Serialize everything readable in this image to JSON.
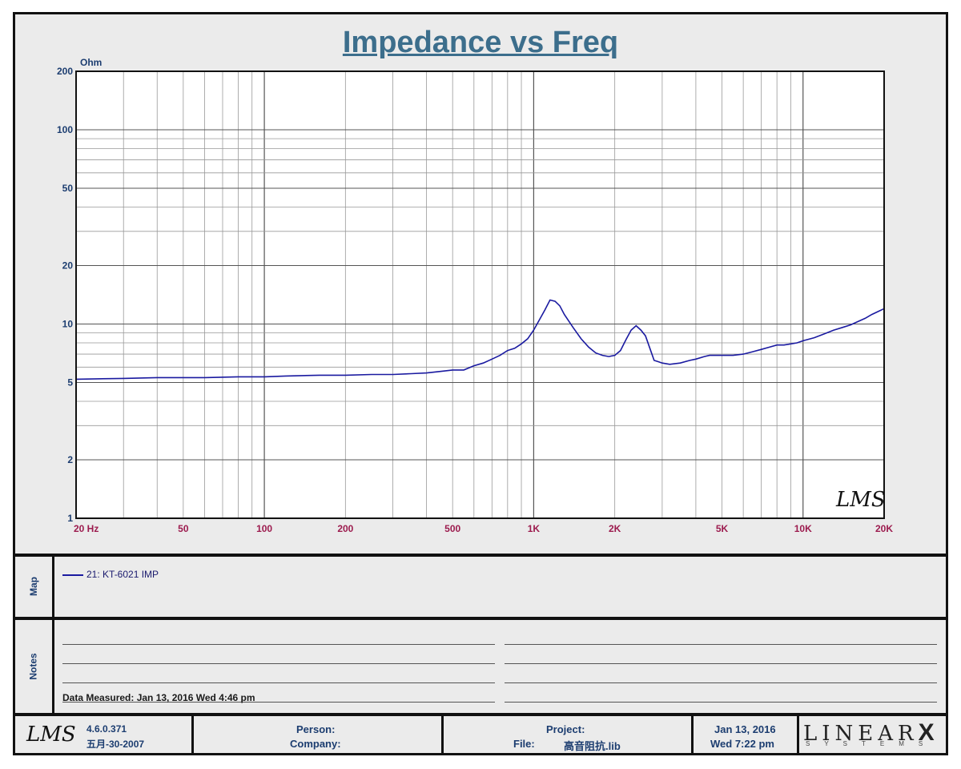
{
  "title": "Impedance vs Freq",
  "chart_data": {
    "type": "line",
    "title": "Impedance vs Freq",
    "xscale": "log",
    "yscale": "log",
    "xlim": [
      20,
      20000
    ],
    "ylim": [
      1,
      200
    ],
    "ylabel": "Ohm",
    "x_tick_labels": [
      "20  Hz",
      "50",
      "100",
      "200",
      "500",
      "1K",
      "2K",
      "5K",
      "10K",
      "20K"
    ],
    "y_tick_labels": [
      "200",
      "100",
      "50",
      "20",
      "10",
      "5",
      "2",
      "1"
    ],
    "grid": true,
    "series": [
      {
        "name": "21: KT-6021 IMP",
        "color": "#1a1aa0",
        "x": [
          20,
          30,
          40,
          60,
          80,
          100,
          120,
          160,
          200,
          250,
          300,
          350,
          400,
          450,
          500,
          550,
          600,
          650,
          700,
          750,
          800,
          850,
          900,
          950,
          1000,
          1050,
          1100,
          1150,
          1200,
          1250,
          1300,
          1400,
          1500,
          1600,
          1700,
          1800,
          1900,
          2000,
          2100,
          2200,
          2300,
          2400,
          2500,
          2600,
          2700,
          2800,
          2900,
          3000,
          3200,
          3500,
          3800,
          4000,
          4300,
          4500,
          5000,
          5500,
          6000,
          6500,
          7000,
          7500,
          8000,
          8500,
          9000,
          9500,
          10000,
          11000,
          12000,
          13000,
          14000,
          15000,
          16000,
          17000,
          18000,
          19000,
          20000
        ],
        "y": [
          5.2,
          5.25,
          5.3,
          5.3,
          5.35,
          5.35,
          5.4,
          5.45,
          5.45,
          5.5,
          5.5,
          5.55,
          5.6,
          5.7,
          5.8,
          5.8,
          6.1,
          6.3,
          6.6,
          6.9,
          7.3,
          7.5,
          7.9,
          8.4,
          9.3,
          10.5,
          11.8,
          13.3,
          13.1,
          12.4,
          11.2,
          9.6,
          8.4,
          7.6,
          7.1,
          6.9,
          6.8,
          6.9,
          7.3,
          8.3,
          9.3,
          9.8,
          9.3,
          8.7,
          7.5,
          6.5,
          6.4,
          6.3,
          6.2,
          6.3,
          6.5,
          6.6,
          6.8,
          6.9,
          6.9,
          6.9,
          7.0,
          7.2,
          7.4,
          7.6,
          7.8,
          7.8,
          7.9,
          8.0,
          8.2,
          8.5,
          8.9,
          9.3,
          9.6,
          9.9,
          10.3,
          10.7,
          11.2,
          11.6,
          12.0
        ]
      }
    ]
  },
  "watermark": "LMS",
  "map": {
    "label": "Map",
    "legend_entry": "21: KT-6021 IMP"
  },
  "notes": {
    "label": "Notes",
    "measured": "Data Measured: Jan 13, 2016  Wed  4:46 pm"
  },
  "footer": {
    "logo": "LMS",
    "version": "4.6.0.371",
    "version_date": "五月-30-2007",
    "person_label": "Person:",
    "company_label": "Company:",
    "project_label": "Project:",
    "file_label": "File:",
    "file_name": "高音阻抗.lib",
    "date": "Jan 13, 2016",
    "day_time": "Wed  7:22 pm",
    "brand": "LINEAR",
    "brand_x": "X",
    "brand_sub": "SYSTEMS"
  }
}
